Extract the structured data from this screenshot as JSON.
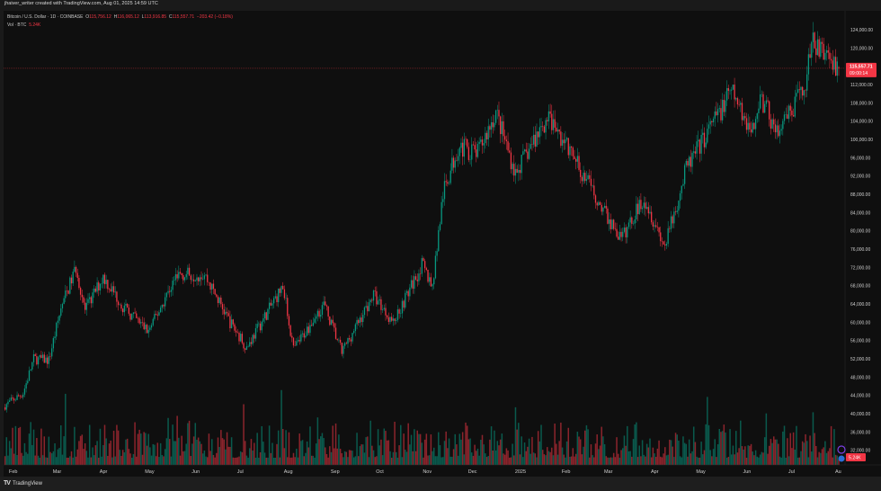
{
  "caption": "jhaiver_writer created with TradingView.com, Aug 01, 2025 14:59 UTC",
  "legend": {
    "symbol": "Bitcoin / U.S. Dollar · 1D · COINBASE",
    "o_label": "O",
    "o": "115,756.12",
    "h_label": "H",
    "h": "116,065.12",
    "l_label": "L",
    "l": "113,916.85",
    "c_label": "C",
    "c": "115,557.71",
    "change": "−203.42 (−0.18%)",
    "vol_label": "Vol · BTC",
    "vol": "5.24K"
  },
  "last_price": {
    "price": "115,557.71",
    "countdown": "09:00:14",
    "volume": "5.24K",
    "color": "#f23645"
  },
  "footer": {
    "brand": "TradingView"
  },
  "colors": {
    "up": "#089981",
    "down": "#f23645",
    "background": "#0f0f0f"
  },
  "chart_data": {
    "type": "candlestick",
    "symbol": "BTCUSD",
    "interval": "1D",
    "ylim": [
      30000,
      128000
    ],
    "grid": false,
    "price_ticks": [
      "124,000.00",
      "120,000.00",
      "112,000.00",
      "108,000.00",
      "104,000.00",
      "100,000.00",
      "96,000.00",
      "92,000.00",
      "88,000.00",
      "84,000.00",
      "80,000.00",
      "76,000.00",
      "72,000.00",
      "68,000.00",
      "64,000.00",
      "60,000.00",
      "56,000.00",
      "52,000.00",
      "48,000.00",
      "44,000.00",
      "40,000.00",
      "36,000.00",
      "32,000.00"
    ],
    "date_ticks": [
      {
        "label": "Feb",
        "date": "2024-02-01"
      },
      {
        "label": "Mar",
        "date": "2024-03-01"
      },
      {
        "label": "Apr",
        "date": "2024-04-01"
      },
      {
        "label": "May",
        "date": "2024-05-01"
      },
      {
        "label": "Jun",
        "date": "2024-06-01"
      },
      {
        "label": "Jul",
        "date": "2024-07-01"
      },
      {
        "label": "Aug",
        "date": "2024-08-01"
      },
      {
        "label": "Sep",
        "date": "2024-09-01"
      },
      {
        "label": "Oct",
        "date": "2024-10-01"
      },
      {
        "label": "Nov",
        "date": "2024-11-01"
      },
      {
        "label": "Dec",
        "date": "2024-12-01"
      },
      {
        "label": "2025",
        "date": "2025-01-01"
      },
      {
        "label": "Feb",
        "date": "2025-02-01"
      },
      {
        "label": "Mar",
        "date": "2025-03-01"
      },
      {
        "label": "Apr",
        "date": "2025-04-01"
      },
      {
        "label": "May",
        "date": "2025-05-01"
      },
      {
        "label": "Jun",
        "date": "2025-06-01"
      },
      {
        "label": "Jul",
        "date": "2025-07-01"
      },
      {
        "label": "Au",
        "date": "2025-08-01"
      }
    ],
    "close_keypoints": [
      [
        "2024-01-27",
        41800
      ],
      [
        "2024-02-08",
        44500
      ],
      [
        "2024-02-15",
        52000
      ],
      [
        "2024-02-25",
        51700
      ],
      [
        "2024-03-04",
        63000
      ],
      [
        "2024-03-14",
        72000
      ],
      [
        "2024-03-20",
        62500
      ],
      [
        "2024-04-01",
        70000
      ],
      [
        "2024-04-15",
        63000
      ],
      [
        "2024-05-01",
        58000
      ],
      [
        "2024-05-20",
        70500
      ],
      [
        "2024-06-07",
        70500
      ],
      [
        "2024-06-24",
        60000
      ],
      [
        "2024-07-05",
        54500
      ],
      [
        "2024-07-29",
        68000
      ],
      [
        "2024-08-05",
        54000
      ],
      [
        "2024-08-25",
        64000
      ],
      [
        "2024-09-06",
        53500
      ],
      [
        "2024-09-27",
        66000
      ],
      [
        "2024-10-10",
        60000
      ],
      [
        "2024-10-29",
        72500
      ],
      [
        "2024-11-05",
        68000
      ],
      [
        "2024-11-12",
        88000
      ],
      [
        "2024-11-22",
        98500
      ],
      [
        "2024-12-05",
        97000
      ],
      [
        "2024-12-17",
        106000
      ],
      [
        "2024-12-30",
        92500
      ],
      [
        "2025-01-20",
        105000
      ],
      [
        "2025-02-03",
        98000
      ],
      [
        "2025-02-27",
        84000
      ],
      [
        "2025-03-10",
        78000
      ],
      [
        "2025-03-25",
        87500
      ],
      [
        "2025-04-08",
        76500
      ],
      [
        "2025-04-22",
        93500
      ],
      [
        "2025-05-22",
        110500
      ],
      [
        "2025-06-05",
        101500
      ],
      [
        "2025-06-10",
        109500
      ],
      [
        "2025-06-22",
        101000
      ],
      [
        "2025-07-09",
        111000
      ],
      [
        "2025-07-14",
        121000
      ],
      [
        "2025-07-24",
        118500
      ],
      [
        "2025-08-01",
        115557.71
      ]
    ]
  }
}
